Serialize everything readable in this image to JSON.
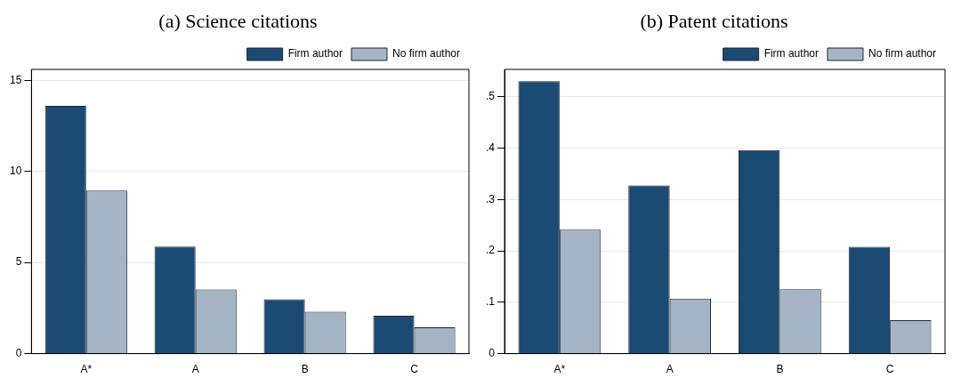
{
  "chart_data": [
    {
      "type": "bar",
      "title": "(a) Science citations",
      "categories": [
        "A*",
        "A",
        "B",
        "C"
      ],
      "series": [
        {
          "name": "Firm author",
          "color": "#1b4a72",
          "values": [
            13.6,
            5.87,
            2.98,
            2.08
          ]
        },
        {
          "name": "No firm author",
          "color": "#a5b4c4",
          "values": [
            8.95,
            3.52,
            2.3,
            1.45
          ]
        }
      ],
      "ylim": [
        0,
        15.6
      ],
      "yticks": [
        0,
        5,
        10,
        15
      ],
      "grid": "y",
      "legend": "top right"
    },
    {
      "type": "bar",
      "title": "(b) Patent citations",
      "categories": [
        "A*",
        "A",
        "B",
        "C"
      ],
      "series": [
        {
          "name": "Firm author",
          "color": "#1b4a72",
          "values": [
            0.53,
            0.327,
            0.396,
            0.208
          ]
        },
        {
          "name": "No firm author",
          "color": "#a5b4c4",
          "values": [
            0.241,
            0.107,
            0.125,
            0.065
          ]
        }
      ],
      "ylim": [
        0,
        0.553
      ],
      "yticks": [
        0,
        {
          "value": 0.1,
          "label": ".1"
        },
        {
          "value": 0.2,
          "label": ".2"
        },
        {
          "value": 0.3,
          "label": ".3"
        },
        {
          "value": 0.4,
          "label": ".4"
        },
        {
          "value": 0.5,
          "label": ".5"
        }
      ],
      "grid": "y",
      "legend": "top right"
    }
  ]
}
